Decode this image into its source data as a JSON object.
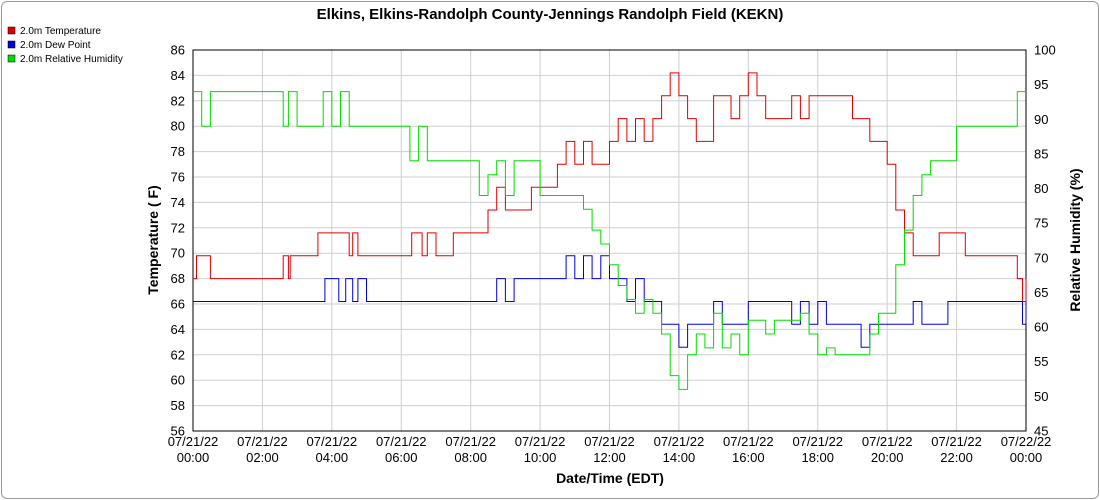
{
  "chart_data": {
    "type": "line",
    "title": "Elkins, Elkins-Randolph County-Jennings Randolph Field (KEKN)",
    "xlabel": "Date/Time (EDT)",
    "ylabel": "Temperature ( F)",
    "y2label": "Relative Humidity (%)",
    "x_ticks": [
      {
        "hour": 0,
        "date": "07/21/22",
        "time": "00:00"
      },
      {
        "hour": 2,
        "date": "07/21/22",
        "time": "02:00"
      },
      {
        "hour": 4,
        "date": "07/21/22",
        "time": "04:00"
      },
      {
        "hour": 6,
        "date": "07/21/22",
        "time": "06:00"
      },
      {
        "hour": 8,
        "date": "07/21/22",
        "time": "08:00"
      },
      {
        "hour": 10,
        "date": "07/21/22",
        "time": "10:00"
      },
      {
        "hour": 12,
        "date": "07/21/22",
        "time": "12:00"
      },
      {
        "hour": 14,
        "date": "07/21/22",
        "time": "14:00"
      },
      {
        "hour": 16,
        "date": "07/21/22",
        "time": "16:00"
      },
      {
        "hour": 18,
        "date": "07/21/22",
        "time": "18:00"
      },
      {
        "hour": 20,
        "date": "07/21/22",
        "time": "20:00"
      },
      {
        "hour": 22,
        "date": "07/21/22",
        "time": "22:00"
      },
      {
        "hour": 24,
        "date": "07/22/22",
        "time": "00:00"
      }
    ],
    "xlim": [
      0,
      24
    ],
    "ylim": [
      56,
      86
    ],
    "y_ticks": [
      56,
      58,
      60,
      62,
      64,
      66,
      68,
      70,
      72,
      74,
      76,
      78,
      80,
      82,
      84,
      86
    ],
    "y2lim": [
      45,
      100
    ],
    "y2_ticks": [
      45,
      50,
      55,
      60,
      65,
      70,
      75,
      80,
      85,
      90,
      95,
      100
    ],
    "grid": true,
    "legend_position": "top-left",
    "series": [
      {
        "name": "2.0m Temperature",
        "color": "#e00000",
        "axis": "left",
        "x": [
          0,
          0.1,
          0.25,
          0.5,
          1.5,
          2.5,
          2.6,
          2.75,
          2.8,
          3.0,
          3.5,
          3.6,
          3.75,
          4.0,
          4.25,
          4.5,
          4.6,
          4.75,
          5.0,
          5.5,
          6.0,
          6.3,
          6.6,
          6.75,
          7.0,
          7.5,
          8.0,
          8.25,
          8.5,
          8.75,
          9.0,
          9.5,
          9.75,
          10.0,
          10.25,
          10.5,
          10.75,
          11.0,
          11.25,
          11.5,
          11.75,
          12.0,
          12.25,
          12.5,
          12.75,
          13.0,
          13.25,
          13.5,
          13.75,
          14.0,
          14.25,
          14.5,
          14.75,
          15.0,
          15.25,
          15.5,
          15.75,
          16.0,
          16.25,
          16.5,
          16.75,
          17.0,
          17.25,
          17.5,
          17.75,
          18.0,
          18.25,
          18.5,
          18.75,
          19.0,
          19.25,
          19.5,
          19.75,
          20.0,
          20.25,
          20.5,
          20.75,
          21.0,
          21.25,
          21.5,
          21.75,
          22.0,
          22.25,
          22.5,
          22.75,
          23.0,
          23.25,
          23.5,
          23.75,
          23.9,
          24.0
        ],
        "y": [
          68.0,
          69.8,
          69.8,
          68.0,
          68.0,
          68.0,
          69.8,
          68.0,
          69.8,
          69.8,
          69.8,
          71.6,
          71.6,
          71.6,
          71.6,
          69.8,
          71.6,
          69.8,
          69.8,
          69.8,
          69.8,
          71.6,
          69.8,
          71.6,
          69.8,
          71.6,
          71.6,
          71.6,
          73.4,
          75.2,
          73.4,
          73.4,
          75.2,
          75.2,
          75.2,
          77.0,
          78.8,
          77.0,
          78.8,
          77.0,
          77.0,
          78.8,
          80.6,
          78.8,
          80.6,
          78.8,
          80.6,
          82.4,
          84.2,
          82.4,
          80.6,
          78.8,
          78.8,
          82.4,
          82.4,
          80.6,
          82.4,
          84.2,
          82.4,
          80.6,
          80.6,
          80.6,
          82.4,
          80.6,
          82.4,
          82.4,
          82.4,
          82.4,
          82.4,
          80.6,
          80.6,
          78.8,
          78.8,
          77.0,
          73.4,
          71.6,
          69.8,
          69.8,
          69.8,
          71.6,
          71.6,
          71.6,
          69.8,
          69.8,
          69.8,
          69.8,
          69.8,
          69.8,
          68.0,
          66.2,
          68.0
        ]
      },
      {
        "name": "2.0m Dew Point",
        "color": "#0000dd",
        "axis": "left",
        "x": [
          0,
          1,
          2,
          3,
          3.7,
          3.8,
          4.0,
          4.2,
          4.4,
          4.6,
          4.75,
          5.0,
          6.0,
          7.0,
          8.0,
          8.5,
          8.75,
          9.0,
          9.25,
          9.5,
          10.0,
          10.5,
          10.75,
          11.0,
          11.25,
          11.5,
          11.75,
          12.0,
          12.25,
          12.5,
          12.75,
          13.0,
          13.25,
          13.5,
          13.75,
          14.0,
          14.25,
          14.5,
          14.75,
          15.0,
          15.25,
          15.5,
          15.75,
          16.0,
          16.25,
          16.5,
          16.75,
          17.0,
          17.25,
          17.5,
          17.75,
          18.0,
          18.25,
          18.5,
          18.75,
          19.0,
          19.25,
          19.5,
          19.75,
          20.0,
          20.25,
          20.5,
          20.75,
          21.0,
          21.25,
          21.5,
          21.75,
          22.0,
          22.25,
          22.5,
          22.75,
          23.0,
          23.25,
          23.5,
          23.75,
          23.9,
          24.0
        ],
        "y": [
          66.2,
          66.2,
          66.2,
          66.2,
          66.2,
          68.0,
          68.0,
          66.2,
          68.0,
          66.2,
          68.0,
          66.2,
          66.2,
          66.2,
          66.2,
          66.2,
          68.0,
          66.2,
          68.0,
          68.0,
          68.0,
          68.0,
          69.8,
          68.0,
          69.8,
          68.0,
          69.8,
          68.0,
          68.0,
          66.2,
          68.0,
          66.2,
          66.2,
          64.4,
          64.4,
          62.6,
          64.4,
          64.4,
          64.4,
          66.2,
          64.4,
          64.4,
          64.4,
          66.2,
          66.2,
          66.2,
          66.2,
          66.2,
          64.4,
          66.2,
          64.4,
          66.2,
          64.4,
          64.4,
          64.4,
          64.4,
          62.6,
          64.4,
          64.4,
          64.4,
          64.4,
          64.4,
          66.2,
          64.4,
          64.4,
          64.4,
          66.2,
          66.2,
          66.2,
          66.2,
          66.2,
          66.2,
          66.2,
          66.2,
          66.2,
          64.4,
          66.2
        ]
      },
      {
        "name": "2.0m Relative Humidity",
        "color": "#00dd00",
        "axis": "right",
        "x": [
          0,
          0.1,
          0.25,
          0.5,
          1.0,
          1.5,
          2.0,
          2.5,
          2.6,
          2.75,
          3.0,
          3.5,
          3.6,
          3.75,
          4.0,
          4.25,
          4.5,
          4.75,
          5.0,
          5.5,
          6.0,
          6.25,
          6.5,
          6.75,
          7.0,
          7.25,
          7.5,
          7.75,
          8.0,
          8.25,
          8.5,
          8.75,
          9.0,
          9.25,
          9.5,
          9.75,
          10.0,
          10.5,
          10.75,
          11.0,
          11.25,
          11.5,
          11.75,
          12.0,
          12.25,
          12.5,
          12.75,
          13.0,
          13.25,
          13.5,
          13.75,
          14.0,
          14.25,
          14.5,
          14.75,
          15.0,
          15.25,
          15.5,
          15.75,
          16.0,
          16.25,
          16.5,
          16.75,
          17.0,
          17.25,
          17.5,
          17.75,
          18.0,
          18.25,
          18.5,
          18.75,
          19.0,
          19.25,
          19.5,
          19.75,
          20.0,
          20.25,
          20.5,
          20.75,
          21.0,
          21.25,
          21.5,
          21.75,
          22.0,
          22.25,
          22.5,
          22.75,
          23.0,
          23.25,
          23.5,
          23.75,
          23.9,
          24.0
        ],
        "y": [
          94,
          94,
          89,
          94,
          94,
          94,
          94,
          94,
          89,
          94,
          89,
          89,
          89,
          94,
          89,
          94,
          89,
          89,
          89,
          89,
          89,
          84,
          89,
          84,
          84,
          84,
          84,
          84,
          84,
          79,
          82,
          84,
          79,
          84,
          84,
          84,
          79,
          79,
          79,
          79,
          77,
          74,
          72,
          69,
          66,
          64,
          62,
          64,
          62,
          59,
          53,
          51,
          56,
          59,
          57,
          62,
          57,
          59,
          56,
          61,
          61,
          59,
          61,
          61,
          61,
          62,
          59,
          56,
          57,
          56,
          56,
          56,
          56,
          59,
          62,
          62,
          69,
          74,
          79,
          82,
          84,
          84,
          84,
          89,
          89,
          89,
          89,
          89,
          89,
          89,
          94,
          94,
          94
        ]
      }
    ]
  }
}
